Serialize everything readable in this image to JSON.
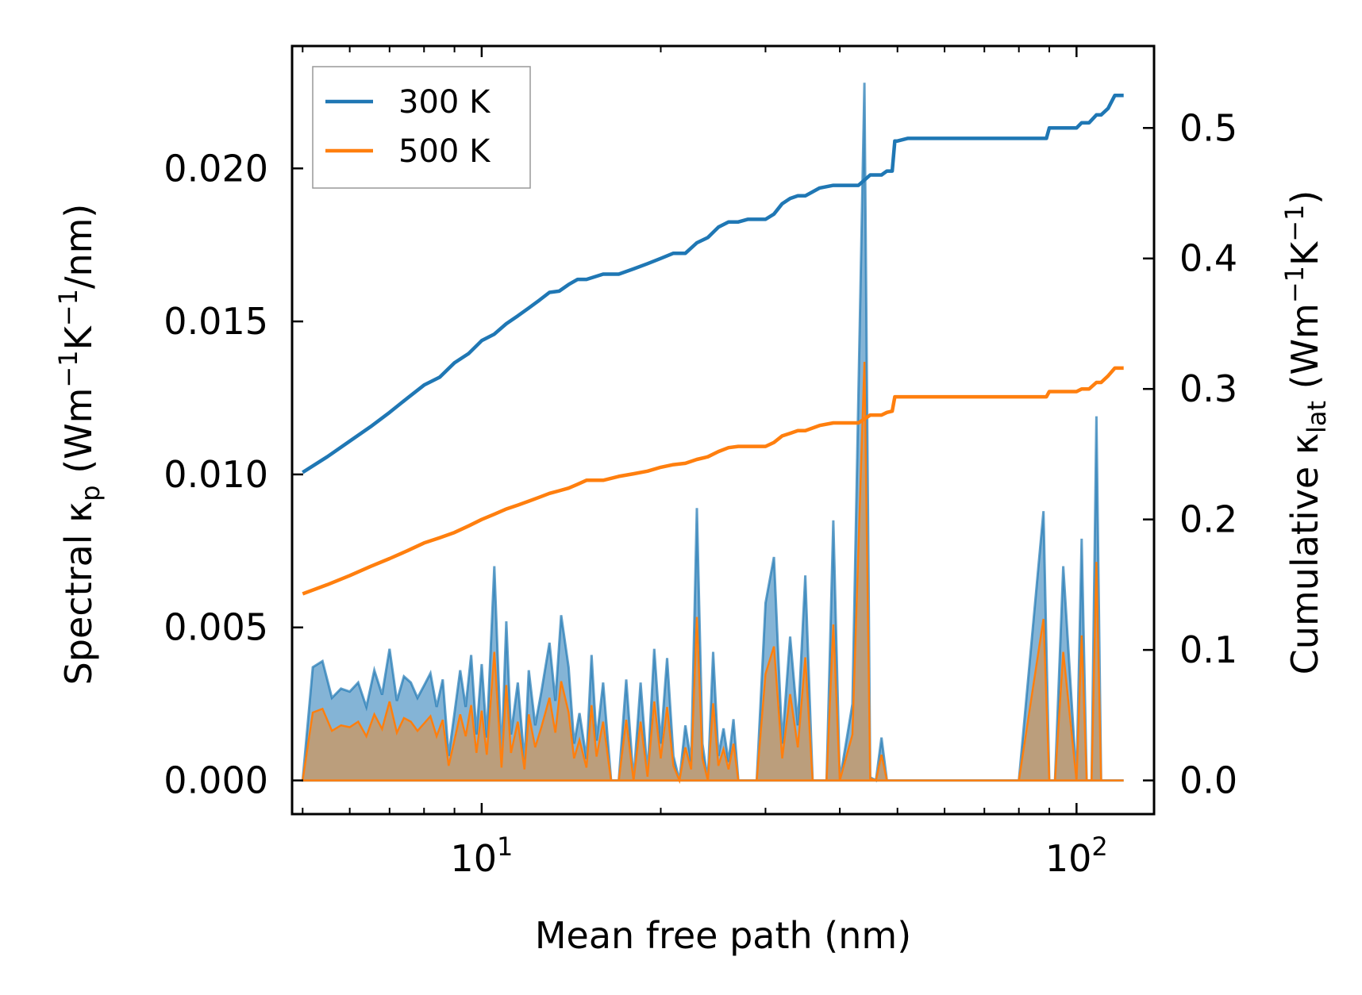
{
  "chart_data": {
    "type": "line",
    "xlabel": "Mean free path (nm)",
    "xscale": "log",
    "xlim": [
      4.8,
      135
    ],
    "x_ticks": [
      {
        "value": 10,
        "base": "10",
        "exp": "1"
      },
      {
        "value": 100,
        "base": "10",
        "exp": "2"
      }
    ],
    "ylabel_left": {
      "prefix": "Spectral κ",
      "sub": "p",
      "mid": " (Wm",
      "sup1": "−1",
      "k": "K",
      "sup2": "−1",
      "suffix": "/nm)"
    },
    "ylabel_right": {
      "prefix": "Cumulative κ",
      "sub": "lat",
      "mid": " (Wm",
      "sup1": "−1",
      "k": "K",
      "sup2": "−1",
      "suffix": ")"
    },
    "ylim_left": [
      -0.0011,
      0.024
    ],
    "ylim_right": [
      -0.0258,
      0.5628
    ],
    "yticks_left": [
      "0.000",
      "0.005",
      "0.010",
      "0.015",
      "0.020"
    ],
    "yticks_left_values": [
      0,
      0.005,
      0.01,
      0.015,
      0.02
    ],
    "yticks_right": [
      "0.0",
      "0.1",
      "0.2",
      "0.3",
      "0.4",
      "0.5"
    ],
    "yticks_right_values": [
      0,
      0.1,
      0.2,
      0.3,
      0.4,
      0.5
    ],
    "legend": {
      "position": "upper-left",
      "entries": [
        "300 K",
        "500 K"
      ]
    },
    "colors": {
      "series_300": "#1f77b4",
      "series_500": "#ff7f0e",
      "fill_300": "#1f77b4",
      "fill_500": "#c49a6c"
    },
    "series": [
      {
        "name": "300 K",
        "axis": "right",
        "kind": "cumulative",
        "x": [
          5,
          5.5,
          6,
          6.5,
          7,
          7.5,
          8,
          8.5,
          9,
          9.5,
          10,
          10.5,
          11,
          11.5,
          12,
          12.5,
          13,
          13.5,
          14,
          14.5,
          15,
          16,
          17,
          18,
          19,
          20,
          21,
          22,
          23,
          24,
          25,
          26,
          27,
          28,
          29,
          30,
          31,
          32,
          33,
          34,
          35,
          37,
          39,
          41,
          43,
          45,
          47,
          48,
          49,
          49.5,
          50,
          52,
          55,
          60,
          70,
          80,
          89,
          90,
          95,
          100,
          102,
          105,
          108,
          110,
          113,
          116,
          120
        ],
        "values": [
          0.236,
          0.248,
          0.26,
          0.271,
          0.282,
          0.293,
          0.303,
          0.309,
          0.32,
          0.327,
          0.337,
          0.342,
          0.35,
          0.356,
          0.362,
          0.368,
          0.374,
          0.375,
          0.38,
          0.384,
          0.384,
          0.388,
          0.388,
          0.392,
          0.396,
          0.4,
          0.404,
          0.404,
          0.412,
          0.416,
          0.424,
          0.428,
          0.428,
          0.43,
          0.43,
          0.43,
          0.434,
          0.442,
          0.446,
          0.448,
          0.448,
          0.454,
          0.456,
          0.456,
          0.456,
          0.464,
          0.464,
          0.467,
          0.467,
          0.49,
          0.49,
          0.492,
          0.492,
          0.492,
          0.492,
          0.492,
          0.492,
          0.5,
          0.5,
          0.5,
          0.504,
          0.504,
          0.51,
          0.51,
          0.515,
          0.525,
          0.525
        ]
      },
      {
        "name": "500 K",
        "axis": "right",
        "kind": "cumulative",
        "x": [
          5,
          5.5,
          6,
          6.5,
          7,
          7.5,
          8,
          8.5,
          9,
          9.5,
          10,
          10.5,
          11,
          11.5,
          12,
          12.5,
          13,
          13.5,
          14,
          14.5,
          15,
          16,
          17,
          18,
          19,
          20,
          21,
          22,
          23,
          24,
          25,
          26,
          27,
          28,
          29,
          30,
          31,
          32,
          33,
          34,
          35,
          37,
          39,
          41,
          43,
          45,
          47,
          48,
          49,
          49.5,
          50,
          52,
          55,
          60,
          70,
          80,
          89,
          90,
          95,
          100,
          102,
          105,
          108,
          110,
          113,
          116,
          120
        ],
        "values": [
          0.143,
          0.15,
          0.157,
          0.164,
          0.17,
          0.176,
          0.182,
          0.186,
          0.19,
          0.195,
          0.2,
          0.204,
          0.208,
          0.211,
          0.214,
          0.217,
          0.22,
          0.222,
          0.224,
          0.227,
          0.23,
          0.23,
          0.233,
          0.235,
          0.237,
          0.24,
          0.242,
          0.243,
          0.246,
          0.248,
          0.252,
          0.255,
          0.256,
          0.256,
          0.256,
          0.256,
          0.259,
          0.264,
          0.266,
          0.268,
          0.268,
          0.272,
          0.274,
          0.274,
          0.274,
          0.28,
          0.28,
          0.282,
          0.283,
          0.294,
          0.294,
          0.294,
          0.294,
          0.294,
          0.294,
          0.294,
          0.294,
          0.298,
          0.298,
          0.298,
          0.3,
          0.3,
          0.305,
          0.305,
          0.31,
          0.316,
          0.316
        ]
      },
      {
        "name": "300 K",
        "axis": "left",
        "kind": "spectral",
        "x": [
          5,
          5.2,
          5.4,
          5.6,
          5.8,
          6,
          6.2,
          6.4,
          6.6,
          6.8,
          7,
          7.2,
          7.4,
          7.6,
          7.8,
          8,
          8.2,
          8.4,
          8.6,
          8.8,
          9,
          9.2,
          9.4,
          9.6,
          9.8,
          10,
          10.2,
          10.5,
          10.8,
          11,
          11.2,
          11.5,
          11.8,
          12,
          12.3,
          12.6,
          13,
          13.3,
          13.6,
          14,
          14.3,
          14.6,
          15,
          15.3,
          15.6,
          16,
          16.5,
          17,
          17.5,
          18,
          18.5,
          19,
          19.5,
          20,
          20.5,
          21,
          21.5,
          22,
          22.5,
          23,
          23.5,
          24,
          24.5,
          25,
          25.5,
          26,
          26.5,
          27,
          27.5,
          28,
          29,
          30,
          31,
          32,
          33,
          34,
          35,
          36,
          37,
          38,
          39,
          40,
          42,
          44,
          45,
          46,
          47,
          48,
          49,
          50,
          51,
          52,
          53,
          55,
          60,
          70,
          80,
          88,
          90,
          92,
          95,
          100,
          102,
          104,
          106,
          108,
          110,
          112,
          114,
          116,
          118,
          120
        ],
        "values": [
          0,
          0.0037,
          0.0039,
          0.0027,
          0.003,
          0.0029,
          0.0032,
          0.0024,
          0.0036,
          0.0028,
          0.0043,
          0.0026,
          0.0034,
          0.0032,
          0.0027,
          0.0031,
          0.0035,
          0.0024,
          0.0033,
          0.0008,
          0.0022,
          0.0036,
          0.0024,
          0.0041,
          0.0015,
          0.0038,
          0.0014,
          0.007,
          0.0007,
          0.0052,
          0.0015,
          0.0032,
          0.0006,
          0.0036,
          0.0018,
          0.0029,
          0.0045,
          0.0026,
          0.0054,
          0.0037,
          0.0012,
          0.0022,
          0.0007,
          0.0041,
          0.0013,
          0.0032,
          0,
          0,
          0.0033,
          0,
          0.0032,
          0.0002,
          0.0043,
          0.0012,
          0.004,
          0.0008,
          0,
          0.0018,
          0.0006,
          0.0089,
          0.0012,
          0,
          0.0042,
          0.0008,
          0.0017,
          0.0006,
          0.002,
          0,
          0,
          0,
          0,
          0.0058,
          0.0073,
          0.0012,
          0.0047,
          0.0018,
          0.0067,
          0,
          0,
          0,
          0.0085,
          0,
          0.0025,
          0.0228,
          0.0001,
          0,
          0.0014,
          0,
          0,
          0,
          0,
          0,
          0,
          0,
          0,
          0,
          0,
          0.0088,
          0,
          0,
          0.007,
          0,
          0.0079,
          0,
          0,
          0.0119,
          0,
          0,
          0,
          0,
          0,
          0
        ],
        "drawn": true
      }
    ]
  }
}
